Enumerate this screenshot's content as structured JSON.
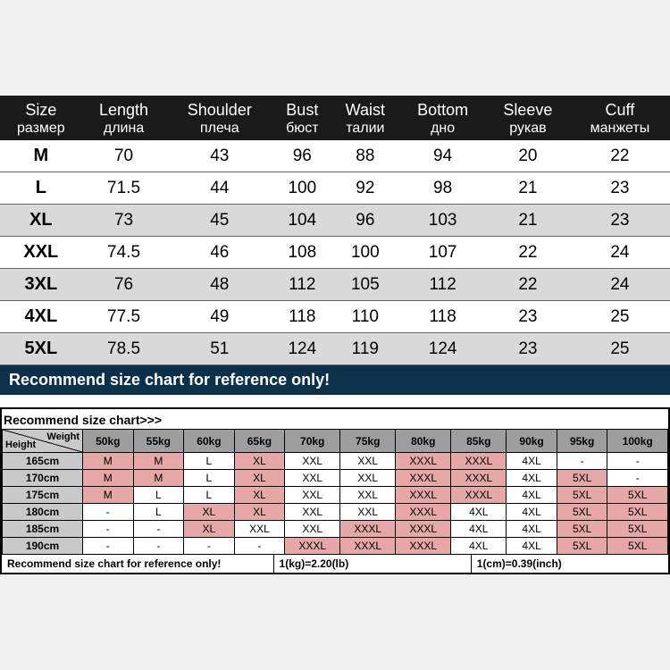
{
  "table1": {
    "headers": [
      {
        "en": "Size",
        "ru": "размер"
      },
      {
        "en": "Length",
        "ru": "длина"
      },
      {
        "en": "Shoulder",
        "ru": "плеча"
      },
      {
        "en": "Bust",
        "ru": "бюст"
      },
      {
        "en": "Waist",
        "ru": "талии"
      },
      {
        "en": "Bottom",
        "ru": "дно"
      },
      {
        "en": "Sleeve",
        "ru": "рукав"
      },
      {
        "en": "Cuff",
        "ru": "манжеты"
      }
    ],
    "rows": [
      {
        "size": "M",
        "vals": [
          "70",
          "43",
          "96",
          "88",
          "94",
          "20",
          "22"
        ],
        "alt": false
      },
      {
        "size": "L",
        "vals": [
          "71.5",
          "44",
          "100",
          "92",
          "98",
          "21",
          "23"
        ],
        "alt": false
      },
      {
        "size": "XL",
        "vals": [
          "73",
          "45",
          "104",
          "96",
          "103",
          "21",
          "23"
        ],
        "alt": true
      },
      {
        "size": "XXL",
        "vals": [
          "74.5",
          "46",
          "108",
          "100",
          "107",
          "22",
          "24"
        ],
        "alt": false
      },
      {
        "size": "3XL",
        "vals": [
          "76",
          "48",
          "112",
          "105",
          "112",
          "22",
          "24"
        ],
        "alt": true
      },
      {
        "size": "4XL",
        "vals": [
          "77.5",
          "49",
          "118",
          "110",
          "118",
          "23",
          "25"
        ],
        "alt": false
      },
      {
        "size": "5XL",
        "vals": [
          "78.5",
          "51",
          "124",
          "119",
          "124",
          "23",
          "25"
        ],
        "alt": true
      }
    ],
    "note": "Recommend size chart for reference only!"
  },
  "table2": {
    "title": "Recommend size chart>>>",
    "corner": {
      "height": "Height",
      "weight": "Weight"
    },
    "weights": [
      "50kg",
      "55kg",
      "60kg",
      "65kg",
      "70kg",
      "75kg",
      "80kg",
      "85kg",
      "90kg",
      "95kg",
      "100kg"
    ],
    "rows": [
      {
        "h": "165cm",
        "cells": [
          {
            "v": "M",
            "c": "p"
          },
          {
            "v": "M",
            "c": "p"
          },
          {
            "v": "L",
            "c": "w"
          },
          {
            "v": "XL",
            "c": "p"
          },
          {
            "v": "XXL",
            "c": "w"
          },
          {
            "v": "XXL",
            "c": "w"
          },
          {
            "v": "XXXL",
            "c": "p"
          },
          {
            "v": "XXXL",
            "c": "p"
          },
          {
            "v": "4XL",
            "c": "w"
          },
          {
            "v": "-",
            "c": "w"
          },
          {
            "v": "-",
            "c": "w"
          }
        ]
      },
      {
        "h": "170cm",
        "cells": [
          {
            "v": "M",
            "c": "p"
          },
          {
            "v": "M",
            "c": "p"
          },
          {
            "v": "L",
            "c": "w"
          },
          {
            "v": "XL",
            "c": "p"
          },
          {
            "v": "XXL",
            "c": "w"
          },
          {
            "v": "XXL",
            "c": "w"
          },
          {
            "v": "XXXL",
            "c": "p"
          },
          {
            "v": "XXXL",
            "c": "p"
          },
          {
            "v": "4XL",
            "c": "w"
          },
          {
            "v": "5XL",
            "c": "p"
          },
          {
            "v": "-",
            "c": "w"
          }
        ]
      },
      {
        "h": "175cm",
        "cells": [
          {
            "v": "M",
            "c": "p"
          },
          {
            "v": "L",
            "c": "w"
          },
          {
            "v": "L",
            "c": "w"
          },
          {
            "v": "XL",
            "c": "p"
          },
          {
            "v": "XXL",
            "c": "w"
          },
          {
            "v": "XXL",
            "c": "w"
          },
          {
            "v": "XXXL",
            "c": "p"
          },
          {
            "v": "XXXL",
            "c": "p"
          },
          {
            "v": "4XL",
            "c": "w"
          },
          {
            "v": "5XL",
            "c": "p"
          },
          {
            "v": "5XL",
            "c": "p"
          }
        ]
      },
      {
        "h": "180cm",
        "cells": [
          {
            "v": "-",
            "c": "w"
          },
          {
            "v": "L",
            "c": "w"
          },
          {
            "v": "XL",
            "c": "p"
          },
          {
            "v": "XL",
            "c": "p"
          },
          {
            "v": "XXL",
            "c": "w"
          },
          {
            "v": "XXL",
            "c": "w"
          },
          {
            "v": "XXXL",
            "c": "p"
          },
          {
            "v": "4XL",
            "c": "w"
          },
          {
            "v": "4XL",
            "c": "w"
          },
          {
            "v": "5XL",
            "c": "p"
          },
          {
            "v": "5XL",
            "c": "p"
          }
        ]
      },
      {
        "h": "185cm",
        "cells": [
          {
            "v": "-",
            "c": "w"
          },
          {
            "v": "-",
            "c": "w"
          },
          {
            "v": "XL",
            "c": "p"
          },
          {
            "v": "XXL",
            "c": "w"
          },
          {
            "v": "XXL",
            "c": "w"
          },
          {
            "v": "XXXL",
            "c": "p"
          },
          {
            "v": "XXXL",
            "c": "p"
          },
          {
            "v": "4XL",
            "c": "w"
          },
          {
            "v": "4XL",
            "c": "w"
          },
          {
            "v": "5XL",
            "c": "p"
          },
          {
            "v": "5XL",
            "c": "p"
          }
        ]
      },
      {
        "h": "190cm",
        "cells": [
          {
            "v": "-",
            "c": "w"
          },
          {
            "v": "-",
            "c": "w"
          },
          {
            "v": "-",
            "c": "w"
          },
          {
            "v": "-",
            "c": "w"
          },
          {
            "v": "XXXL",
            "c": "p"
          },
          {
            "v": "XXXL",
            "c": "p"
          },
          {
            "v": "XXXL",
            "c": "p"
          },
          {
            "v": "4XL",
            "c": "w"
          },
          {
            "v": "4XL",
            "c": "w"
          },
          {
            "v": "5XL",
            "c": "p"
          },
          {
            "v": "5XL",
            "c": "p"
          }
        ]
      }
    ],
    "footer": {
      "note": "Recommend size chart for reference only!",
      "kg": "1(kg)=2.20(lb)",
      "cm": "1(cm)=0.39(inch)"
    }
  },
  "colors": {
    "header_dark": "#1a1a1a",
    "banner_blue": "#0c2f4a",
    "pink": "#e6a7a7",
    "gray_head": "#9e9e9e",
    "gray_cell": "#c9c9c9",
    "alt_row": "#d9d9d9"
  }
}
